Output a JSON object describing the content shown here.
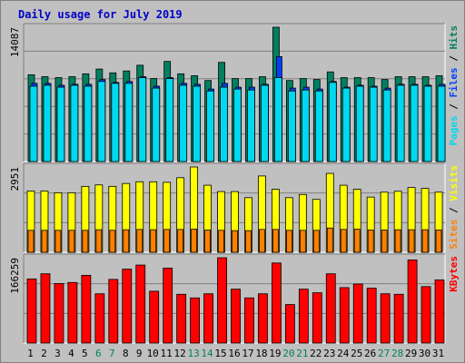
{
  "chart_data": {
    "type": "bar",
    "title": "Daily usage for July 2019",
    "colors": {
      "title": "#0000c8",
      "pages": "#00d8f0",
      "files": "#0040ff",
      "hits": "#008060",
      "visits": "#ffff00",
      "sites": "#ff8000",
      "kbytes": "#ff0000",
      "weekend_label": "#008060",
      "weekday_label": "#000000",
      "panel_bg": "#c0c0c0",
      "grid": "#808080"
    },
    "categories": [
      "1",
      "2",
      "3",
      "4",
      "5",
      "6",
      "7",
      "8",
      "9",
      "10",
      "11",
      "12",
      "13",
      "14",
      "15",
      "16",
      "17",
      "18",
      "19",
      "20",
      "21",
      "22",
      "23",
      "24",
      "25",
      "26",
      "27",
      "28",
      "29",
      "30",
      "31"
    ],
    "weekend_days": [
      "6",
      "7",
      "13",
      "14",
      "20",
      "21",
      "27",
      "28"
    ],
    "panels": [
      {
        "name": "hits",
        "max_label": "14087",
        "ylim": [
          0,
          14087
        ],
        "legend": [
          {
            "label": "Pages",
            "color_key": "pages"
          },
          {
            "label": "Files",
            "color_key": "files"
          },
          {
            "label": "Hits",
            "color_key": "hits"
          }
        ],
        "series": [
          {
            "name": "Hits",
            "color_key": "hits",
            "values": [
              9100,
              8900,
              8800,
              8900,
              9200,
              9700,
              9300,
              9500,
              10100,
              8700,
              10500,
              9200,
              9000,
              8500,
              10400,
              8700,
              8700,
              8900,
              14087,
              8500,
              8700,
              8600,
              9400,
              8800,
              8800,
              8800,
              8600,
              8900,
              8900,
              8900,
              9000
            ]
          },
          {
            "name": "Files",
            "color_key": "files",
            "values": [
              8200,
              8200,
              8000,
              8100,
              8100,
              8600,
              8300,
              8400,
              8900,
              7900,
              8800,
              8200,
              8100,
              7600,
              8200,
              7800,
              7800,
              8100,
              11000,
              7700,
              7800,
              7600,
              8400,
              7800,
              8000,
              7900,
              7700,
              8100,
              8100,
              8000,
              8100
            ]
          },
          {
            "name": "Pages",
            "color_key": "pages",
            "values": [
              7900,
              8000,
              7800,
              8000,
              7900,
              8400,
              8200,
              8200,
              8800,
              7700,
              8700,
              8000,
              7900,
              7400,
              7800,
              7600,
              7500,
              8000,
              8800,
              7400,
              7500,
              7400,
              8300,
              7700,
              7900,
              7800,
              7500,
              8000,
              8000,
              7900,
              7900
            ]
          }
        ]
      },
      {
        "name": "visits",
        "max_label": "2951",
        "ylim": [
          0,
          2951
        ],
        "legend": [
          {
            "label": "Sites",
            "color_key": "sites"
          },
          {
            "label": "Visits",
            "color_key": "visits"
          }
        ],
        "series": [
          {
            "name": "Visits",
            "color_key": "visits",
            "values": [
              2120,
              2120,
              2060,
              2060,
              2280,
              2330,
              2280,
              2380,
              2440,
              2440,
              2420,
              2580,
              2951,
              2320,
              2100,
              2100,
              1890,
              2640,
              2180,
              1890,
              2000,
              1830,
              2730,
              2320,
              2180,
              1910,
              2080,
              2110,
              2240,
              2210,
              2080
            ]
          },
          {
            "name": "Sites",
            "color_key": "sites",
            "values": [
              760,
              760,
              760,
              760,
              760,
              780,
              760,
              780,
              790,
              780,
              790,
              790,
              800,
              770,
              760,
              750,
              750,
              790,
              790,
              760,
              760,
              760,
              840,
              790,
              800,
              770,
              770,
              780,
              780,
              780,
              770
            ]
          }
        ]
      },
      {
        "name": "kbytes",
        "max_label": "166259",
        "ylim": [
          0,
          166259
        ],
        "legend": [
          {
            "label": "KBytes",
            "color_key": "kbytes"
          }
        ],
        "series": [
          {
            "name": "KBytes",
            "color_key": "kbytes",
            "values": [
              125000,
              135000,
              116000,
              118000,
              132000,
              96000,
              124000,
              144000,
              152000,
              101000,
              146000,
              95000,
              88000,
              96000,
              166259,
              105000,
              88000,
              96000,
              156000,
              75000,
              105000,
              98000,
              135000,
              108000,
              115000,
              107000,
              96000,
              95000,
              162000,
              110000,
              123000
            ]
          }
        ]
      }
    ]
  }
}
